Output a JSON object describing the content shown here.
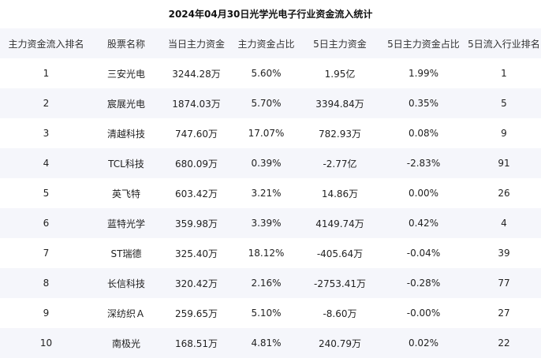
{
  "title": "2024年04月30日光学光电子行业资金流入统计",
  "headers": [
    "主力资金流入排名",
    "股票名称",
    "当日主力资金",
    "主力资金占比",
    "5日主力资金",
    "5日主力资金占比",
    "5日流入行业排名"
  ],
  "rows": [
    [
      "1",
      "三安光电",
      "3244.28万",
      "5.60%",
      "1.95亿",
      "1.99%",
      "1"
    ],
    [
      "2",
      "宸展光电",
      "1874.03万",
      "5.70%",
      "3394.84万",
      "0.35%",
      "5"
    ],
    [
      "3",
      "清越科技",
      "747.60万",
      "17.07%",
      "782.93万",
      "0.08%",
      "9"
    ],
    [
      "4",
      "TCL科技",
      "680.09万",
      "0.39%",
      "-2.77亿",
      "-2.83%",
      "91"
    ],
    [
      "5",
      "英飞特",
      "603.42万",
      "3.21%",
      "14.86万",
      "0.00%",
      "26"
    ],
    [
      "6",
      "蓝特光学",
      "359.98万",
      "3.39%",
      "4149.74万",
      "0.42%",
      "4"
    ],
    [
      "7",
      "ST瑞德",
      "325.40万",
      "18.12%",
      "-405.64万",
      "-0.04%",
      "39"
    ],
    [
      "8",
      "长信科技",
      "320.42万",
      "2.16%",
      "-2753.41万",
      "-0.28%",
      "77"
    ],
    [
      "9",
      "深纺织Ａ",
      "259.65万",
      "5.10%",
      "-8.60万",
      "-0.00%",
      "27"
    ],
    [
      "10",
      "南极光",
      "168.51万",
      "4.81%",
      "240.79万",
      "0.02%",
      "22"
    ]
  ]
}
